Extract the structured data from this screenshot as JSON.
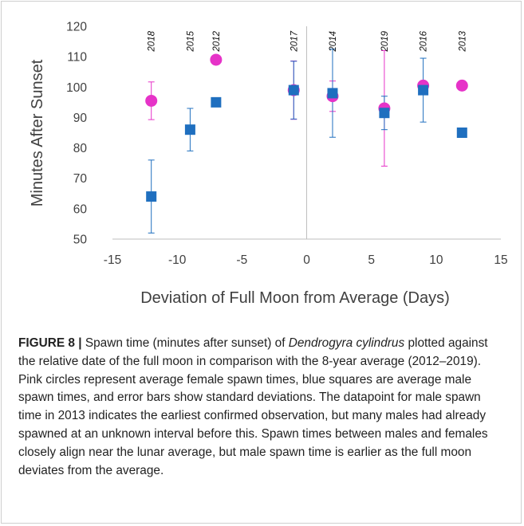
{
  "chart_data": {
    "type": "scatter",
    "xlabel": "Deviation of Full Moon from Average (Days)",
    "ylabel": "Minutes After Sunset",
    "xlim": [
      -15,
      15
    ],
    "ylim": [
      50,
      120
    ],
    "x_ticks": [
      "-15",
      "-10",
      "-5",
      "0",
      "5",
      "10",
      "15"
    ],
    "y_ticks": [
      "50",
      "60",
      "70",
      "80",
      "90",
      "100",
      "110",
      "120"
    ],
    "grid": false,
    "legend": "none",
    "years": [
      {
        "x": -12,
        "label": "2018"
      },
      {
        "x": -9,
        "label": "2015"
      },
      {
        "x": -7,
        "label": "2012"
      },
      {
        "x": -1,
        "label": "2017"
      },
      {
        "x": 2,
        "label": "2014"
      },
      {
        "x": 6,
        "label": "2019"
      },
      {
        "x": 9,
        "label": "2016"
      },
      {
        "x": 12,
        "label": "2013"
      }
    ],
    "series": [
      {
        "marker": "square",
        "color": "#1f6fbf",
        "points": [
          {
            "x": -12,
            "y": 64,
            "err": 12
          },
          {
            "x": -9,
            "y": 86,
            "err": 7
          },
          {
            "x": -7,
            "y": 95
          },
          {
            "x": -1,
            "y": 99,
            "err": 9.5
          },
          {
            "x": 2,
            "y": 98,
            "err": 14.5
          },
          {
            "x": 6,
            "y": 91.5,
            "err": 5.5
          },
          {
            "x": 9,
            "y": 99,
            "err": 10.5
          },
          {
            "x": 12,
            "y": 85
          }
        ]
      },
      {
        "marker": "circle",
        "color": "#e633c8",
        "points": [
          {
            "x": -12,
            "y": 95.5,
            "err": 6.2
          },
          {
            "x": -7,
            "y": 109
          },
          {
            "x": -1,
            "y": 99,
            "err": 9.6
          },
          {
            "x": 2,
            "y": 97,
            "err": 5
          },
          {
            "x": 6,
            "y": 93,
            "err": 19
          },
          {
            "x": 9,
            "y": 100.5
          },
          {
            "x": 12,
            "y": 100.5
          }
        ]
      }
    ]
  },
  "caption": {
    "label": "FIGURE 8 |",
    "part1": " Spawn time (minutes after sunset) of ",
    "species": "Dendrogyra cylindrus",
    "part2": " plotted against the relative date of the full moon in comparison with the 8-year average (2012–2019). Pink circles represent average female spawn times, blue squares are average male spawn times, and error bars show standard deviations. The datapoint for male spawn time in 2013 indicates the earliest confirmed observation, but many males had already spawned at an unknown interval before this. Spawn times between males and females closely align near the lunar average, but male spawn time is earlier as the full moon deviates from the average."
  }
}
